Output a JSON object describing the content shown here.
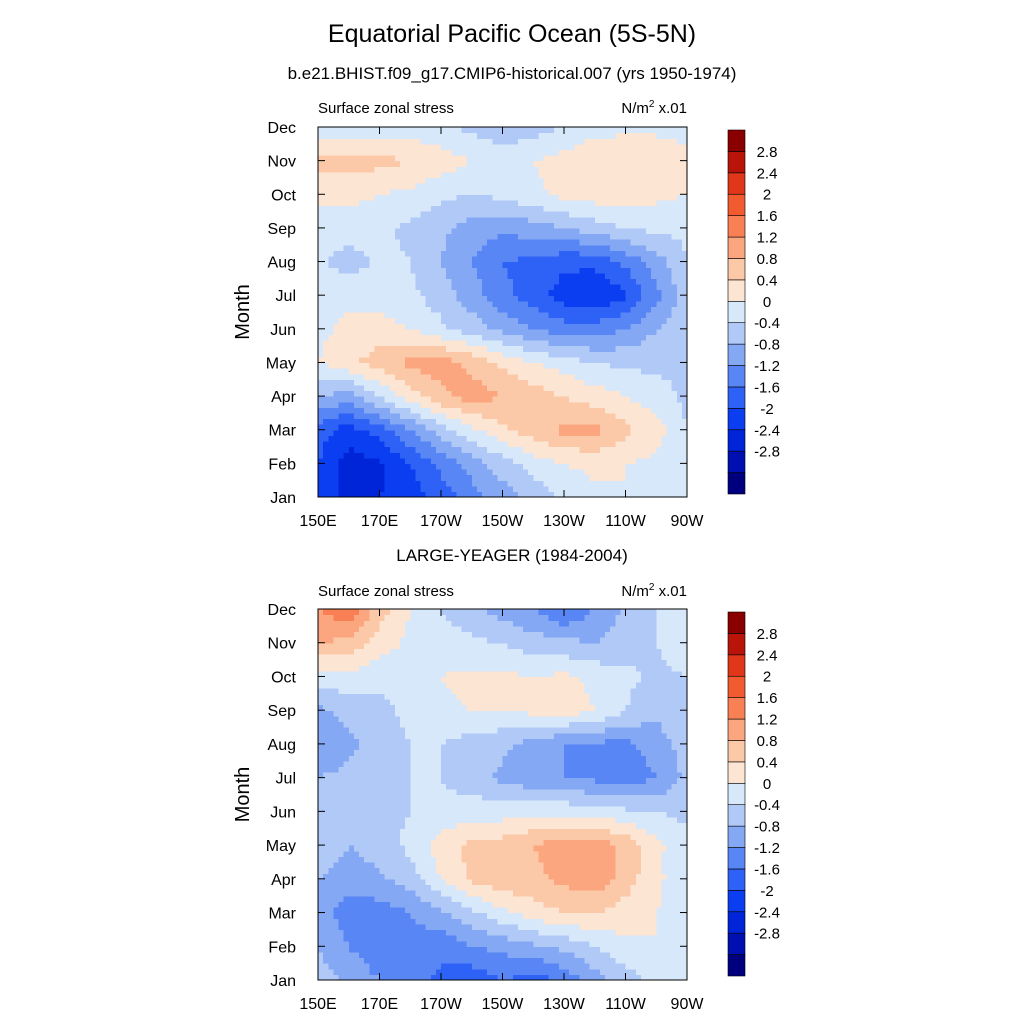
{
  "title": "Equatorial Pacific Ocean (5S-5N)",
  "colorbar_colors": [
    "#00007f",
    "#0010b0",
    "#0024d8",
    "#0b3ef0",
    "#2e61f5",
    "#5886f5",
    "#85a8f5",
    "#b1c9f7",
    "#d8e8fb",
    "#fde5d3",
    "#fcc9a8",
    "#fba67e",
    "#f88054",
    "#f25a30",
    "#e0371a",
    "#b8140a",
    "#8a0000"
  ],
  "chart_data": [
    {
      "type": "heatmap",
      "title": "b.e21.BHIST.f09_g17.CMIP6-historical.007 (yrs 1950-1974)",
      "left_label": "Surface zonal stress",
      "right_label_base": "N/m",
      "right_label_sup": "2",
      "right_label_scale": "x.01",
      "xlabel": "",
      "ylabel": "Month",
      "x_ticks": [
        "150E",
        "170E",
        "170W",
        "150W",
        "130W",
        "110W",
        "90W"
      ],
      "x_tick_values": [
        150,
        170,
        190,
        210,
        230,
        250,
        270
      ],
      "xlim": [
        150,
        270
      ],
      "y_ticks": [
        "Jan",
        "Feb",
        "Mar",
        "Apr",
        "May",
        "Jun",
        "Jul",
        "Aug",
        "Sep",
        "Oct",
        "Nov",
        "Dec"
      ],
      "colorbar_labels": [
        "2.8",
        "2.4",
        "2",
        "1.6",
        "1.2",
        "0.8",
        "0.4",
        "0",
        "-0.4",
        "-0.8",
        "-1.2",
        "-1.6",
        "-2",
        "-2.4",
        "-2.8"
      ],
      "x_grid": [
        150,
        160,
        170,
        180,
        190,
        200,
        210,
        220,
        230,
        240,
        250,
        260,
        270
      ],
      "values": [
        [
          -1.8,
          -2.1,
          -2.0,
          -1.8,
          -1.4,
          -1.0,
          -0.6,
          -0.3,
          0.1,
          0.3,
          0.4,
          0.3,
          0.0
        ],
        [
          -1.6,
          -2.2,
          -2.1,
          -1.6,
          -1.1,
          -0.6,
          -0.2,
          0.2,
          0.4,
          0.5,
          0.4,
          0.3,
          0.0
        ],
        [
          -1.4,
          -1.8,
          -1.4,
          -0.8,
          -0.2,
          0.3,
          0.7,
          1.0,
          1.3,
          1.3,
          0.9,
          0.6,
          0.0
        ],
        [
          -0.4,
          -0.6,
          0.0,
          0.6,
          1.1,
          1.4,
          1.2,
          1.0,
          0.8,
          0.6,
          0.4,
          0.2,
          -0.1
        ],
        [
          0.4,
          0.7,
          1.0,
          1.3,
          1.4,
          1.1,
          0.7,
          0.4,
          0.2,
          0.0,
          -0.1,
          -0.1,
          -0.1
        ],
        [
          0.3,
          0.5,
          0.6,
          0.4,
          0.1,
          -0.2,
          -0.5,
          -0.8,
          -1.0,
          -1.0,
          -0.8,
          -0.4,
          -0.1
        ],
        [
          0.2,
          0.3,
          0.2,
          0.1,
          -0.2,
          -0.6,
          -1.1,
          -1.4,
          -1.8,
          -2.0,
          -1.7,
          -0.9,
          -0.2
        ],
        [
          0.1,
          -0.2,
          0.1,
          0.0,
          -0.4,
          -0.8,
          -1.2,
          -1.3,
          -1.5,
          -1.5,
          -1.1,
          -0.6,
          0.0
        ],
        [
          0.2,
          0.2,
          0.1,
          -0.1,
          -0.3,
          -0.6,
          -0.7,
          -0.6,
          -0.4,
          -0.2,
          0.0,
          0.1,
          0.1
        ],
        [
          0.5,
          0.5,
          0.4,
          0.3,
          0.1,
          0.0,
          0.1,
          0.3,
          0.5,
          0.6,
          0.6,
          0.5,
          0.4
        ],
        [
          0.9,
          1.0,
          0.9,
          0.8,
          0.6,
          0.4,
          0.3,
          0.4,
          0.6,
          0.8,
          0.8,
          0.7,
          0.6
        ],
        [
          0.1,
          0.2,
          0.2,
          0.2,
          0.1,
          -0.1,
          -0.3,
          -0.2,
          0.0,
          0.2,
          0.3,
          0.3,
          0.2
        ]
      ]
    },
    {
      "type": "heatmap",
      "title": "LARGE-YEAGER (1984-2004)",
      "left_label": "Surface zonal stress",
      "right_label_base": "N/m",
      "right_label_sup": "2",
      "right_label_scale": "x.01",
      "xlabel": "",
      "ylabel": "Month",
      "x_ticks": [
        "150E",
        "170E",
        "170W",
        "150W",
        "130W",
        "110W",
        "90W"
      ],
      "x_tick_values": [
        150,
        170,
        190,
        210,
        230,
        250,
        270
      ],
      "xlim": [
        150,
        270
      ],
      "y_ticks": [
        "Jan",
        "Feb",
        "Mar",
        "Apr",
        "May",
        "Jun",
        "Jul",
        "Aug",
        "Sep",
        "Oct",
        "Nov",
        "Dec"
      ],
      "colorbar_labels": [
        "2.8",
        "2.4",
        "2",
        "1.6",
        "1.2",
        "0.8",
        "0.4",
        "0",
        "-0.4",
        "-0.8",
        "-1.2",
        "-1.6",
        "-2",
        "-2.4",
        "-2.8"
      ],
      "x_grid": [
        150,
        160,
        170,
        180,
        190,
        200,
        210,
        220,
        230,
        240,
        250,
        260,
        270
      ],
      "values": [
        [
          -0.2,
          -0.5,
          -0.8,
          -1.0,
          -1.3,
          -1.5,
          -1.2,
          -1.4,
          -1.1,
          -0.6,
          -0.2,
          0.1,
          0.2
        ],
        [
          -0.4,
          -0.8,
          -1.1,
          -0.9,
          -1.1,
          -0.8,
          -0.7,
          -0.5,
          -0.3,
          0.0,
          0.3,
          0.4,
          0.4
        ],
        [
          -0.6,
          -1.0,
          -1.0,
          -0.8,
          -0.5,
          -0.1,
          0.3,
          0.6,
          0.8,
          0.8,
          0.6,
          0.4,
          0.2
        ],
        [
          -0.4,
          -0.6,
          -0.5,
          -0.2,
          0.4,
          0.9,
          1.1,
          1.1,
          1.3,
          1.5,
          1.0,
          0.5,
          0.1
        ],
        [
          -0.2,
          -0.4,
          -0.2,
          0.1,
          0.6,
          0.9,
          1.0,
          1.2,
          1.4,
          1.5,
          1.1,
          0.5,
          0.1
        ],
        [
          -0.2,
          -0.2,
          -0.1,
          0.0,
          0.1,
          0.2,
          0.2,
          0.3,
          0.3,
          0.2,
          0.1,
          0.0,
          -0.1
        ],
        [
          -0.4,
          -0.3,
          -0.1,
          0.0,
          0.0,
          -0.2,
          -0.5,
          -0.7,
          -0.8,
          -0.9,
          -1.1,
          -0.8,
          -0.3
        ],
        [
          -0.7,
          -0.5,
          -0.2,
          0.0,
          0.0,
          -0.2,
          -0.3,
          -0.6,
          -0.8,
          -0.9,
          -0.9,
          -0.6,
          -0.2
        ],
        [
          -0.5,
          -0.3,
          -0.1,
          0.1,
          0.3,
          0.4,
          0.4,
          0.5,
          0.6,
          0.4,
          0.0,
          -0.3,
          -0.1
        ],
        [
          0.2,
          0.3,
          0.1,
          0.2,
          0.4,
          0.5,
          0.5,
          0.4,
          0.5,
          0.3,
          0.1,
          -0.1,
          0.0
        ],
        [
          1.2,
          1.1,
          0.6,
          0.3,
          0.2,
          0.1,
          0.0,
          -0.2,
          -0.3,
          -0.4,
          -0.2,
          0.0,
          0.3
        ],
        [
          1.6,
          1.9,
          1.0,
          0.4,
          0.0,
          -0.3,
          -0.6,
          -0.8,
          -1.2,
          -0.8,
          -0.3,
          0.0,
          0.2
        ]
      ]
    }
  ]
}
